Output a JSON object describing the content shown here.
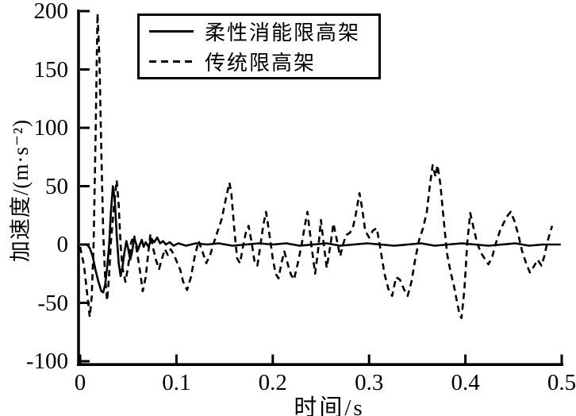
{
  "chart_data": {
    "type": "line",
    "title": "",
    "xlabel": "时间/s",
    "ylabel": "加速度/(m·s⁻²)",
    "xlim": [
      0,
      0.5
    ],
    "ylim": [
      -100,
      200
    ],
    "grid": false,
    "background": "#ffffff",
    "axis_color": "#000000",
    "xticks": {
      "values": [
        0,
        0.1,
        0.2,
        0.3,
        0.4,
        0.5
      ],
      "labels": [
        "0",
        "0.1",
        "0.2",
        "0.3",
        "0.4",
        "0.5"
      ]
    },
    "yticks": {
      "values": [
        200,
        150,
        100,
        50,
        0,
        -50,
        -100
      ],
      "labels": [
        "200",
        "150",
        "100",
        "50",
        "0",
        "-50",
        "-100"
      ]
    },
    "legend": {
      "position": "upper-left-inside",
      "border": true
    },
    "series": [
      {
        "name": "柔性消能限高架",
        "line_style": "solid",
        "color": "#000000",
        "points": [
          [
            0,
            0
          ],
          [
            0.007,
            0
          ],
          [
            0.01,
            -3
          ],
          [
            0.013,
            -10
          ],
          [
            0.016,
            -22
          ],
          [
            0.019,
            -32
          ],
          [
            0.022,
            -40
          ],
          [
            0.024,
            -41
          ],
          [
            0.026,
            -34
          ],
          [
            0.028,
            -20
          ],
          [
            0.03,
            -2
          ],
          [
            0.032,
            28
          ],
          [
            0.034,
            50
          ],
          [
            0.036,
            38
          ],
          [
            0.038,
            8
          ],
          [
            0.04,
            -16
          ],
          [
            0.042,
            -27
          ],
          [
            0.044,
            -19
          ],
          [
            0.046,
            -7
          ],
          [
            0.048,
            3
          ],
          [
            0.05,
            -4
          ],
          [
            0.052,
            -13
          ],
          [
            0.054,
            -6
          ],
          [
            0.056,
            5
          ],
          [
            0.058,
            1
          ],
          [
            0.06,
            -5
          ],
          [
            0.062,
            0
          ],
          [
            0.064,
            4
          ],
          [
            0.066,
            -2
          ],
          [
            0.068,
            2
          ],
          [
            0.071,
            -2
          ],
          [
            0.074,
            5
          ],
          [
            0.077,
            2
          ],
          [
            0.08,
            6
          ],
          [
            0.083,
            1
          ],
          [
            0.086,
            3
          ],
          [
            0.089,
            0
          ],
          [
            0.093,
            2
          ],
          [
            0.097,
            -1
          ],
          [
            0.102,
            1
          ],
          [
            0.11,
            -1
          ],
          [
            0.12,
            1
          ],
          [
            0.132,
            0
          ],
          [
            0.144,
            1
          ],
          [
            0.158,
            -1
          ],
          [
            0.172,
            0
          ],
          [
            0.186,
            1
          ],
          [
            0.2,
            0
          ],
          [
            0.214,
            1
          ],
          [
            0.228,
            -1
          ],
          [
            0.242,
            0
          ],
          [
            0.256,
            1
          ],
          [
            0.27,
            -1
          ],
          [
            0.284,
            0
          ],
          [
            0.298,
            1
          ],
          [
            0.312,
            0
          ],
          [
            0.326,
            -1
          ],
          [
            0.34,
            0
          ],
          [
            0.354,
            1
          ],
          [
            0.368,
            -1
          ],
          [
            0.382,
            0
          ],
          [
            0.396,
            1
          ],
          [
            0.41,
            0
          ],
          [
            0.424,
            -1
          ],
          [
            0.438,
            0
          ],
          [
            0.452,
            1
          ],
          [
            0.466,
            -1
          ],
          [
            0.48,
            0
          ],
          [
            0.499,
            0
          ]
        ]
      },
      {
        "name": "传统限高架",
        "line_style": "dashed",
        "color": "#000000",
        "points": [
          [
            0,
            -2
          ],
          [
            0.004,
            -18
          ],
          [
            0.007,
            -40
          ],
          [
            0.01,
            -62
          ],
          [
            0.012,
            -45
          ],
          [
            0.014,
            0
          ],
          [
            0.016,
            90
          ],
          [
            0.018,
            198
          ],
          [
            0.02,
            160
          ],
          [
            0.022,
            80
          ],
          [
            0.024,
            10
          ],
          [
            0.026,
            -30
          ],
          [
            0.028,
            -48
          ],
          [
            0.03,
            -28
          ],
          [
            0.032,
            2
          ],
          [
            0.035,
            32
          ],
          [
            0.038,
            55
          ],
          [
            0.04,
            34
          ],
          [
            0.042,
            0
          ],
          [
            0.044,
            -20
          ],
          [
            0.047,
            -32
          ],
          [
            0.05,
            -18
          ],
          [
            0.053,
            2
          ],
          [
            0.056,
            8
          ],
          [
            0.059,
            -6
          ],
          [
            0.062,
            -22
          ],
          [
            0.065,
            -40
          ],
          [
            0.068,
            -28
          ],
          [
            0.071,
            -5
          ],
          [
            0.073,
            9
          ],
          [
            0.076,
            -4
          ],
          [
            0.079,
            -14
          ],
          [
            0.082,
            -21
          ],
          [
            0.085,
            -12
          ],
          [
            0.088,
            -4
          ],
          [
            0.091,
            -9
          ],
          [
            0.094,
            -4
          ],
          [
            0.097,
            -8
          ],
          [
            0.1,
            -14
          ],
          [
            0.104,
            -22
          ],
          [
            0.107,
            -32
          ],
          [
            0.111,
            -39
          ],
          [
            0.115,
            -28
          ],
          [
            0.119,
            -10
          ],
          [
            0.123,
            3
          ],
          [
            0.127,
            -6
          ],
          [
            0.131,
            -16
          ],
          [
            0.135,
            -9
          ],
          [
            0.139,
            2
          ],
          [
            0.143,
            12
          ],
          [
            0.147,
            22
          ],
          [
            0.151,
            38
          ],
          [
            0.155,
            53
          ],
          [
            0.157,
            44
          ],
          [
            0.16,
            14
          ],
          [
            0.163,
            -12
          ],
          [
            0.166,
            -16
          ],
          [
            0.169,
            -2
          ],
          [
            0.172,
            10
          ],
          [
            0.175,
            16
          ],
          [
            0.178,
            2
          ],
          [
            0.181,
            -14
          ],
          [
            0.184,
            -18
          ],
          [
            0.187,
            -2
          ],
          [
            0.19,
            16
          ],
          [
            0.193,
            28
          ],
          [
            0.196,
            12
          ],
          [
            0.2,
            -12
          ],
          [
            0.203,
            -25
          ],
          [
            0.206,
            -29
          ],
          [
            0.209,
            -16
          ],
          [
            0.212,
            -6
          ],
          [
            0.216,
            -18
          ],
          [
            0.219,
            -26
          ],
          [
            0.222,
            -30
          ],
          [
            0.226,
            -16
          ],
          [
            0.23,
            0
          ],
          [
            0.233,
            15
          ],
          [
            0.236,
            28
          ],
          [
            0.24,
            0
          ],
          [
            0.244,
            -25
          ],
          [
            0.247,
            -5
          ],
          [
            0.25,
            21
          ],
          [
            0.253,
            0
          ],
          [
            0.256,
            -20
          ],
          [
            0.26,
            0
          ],
          [
            0.263,
            18
          ],
          [
            0.267,
            2
          ],
          [
            0.27,
            -10
          ],
          [
            0.273,
            0
          ],
          [
            0.276,
            8
          ],
          [
            0.28,
            10
          ],
          [
            0.283,
            14
          ],
          [
            0.286,
            25
          ],
          [
            0.29,
            44
          ],
          [
            0.293,
            30
          ],
          [
            0.296,
            12
          ],
          [
            0.3,
            6
          ],
          [
            0.304,
            12
          ],
          [
            0.308,
            14
          ],
          [
            0.312,
            -5
          ],
          [
            0.316,
            -25
          ],
          [
            0.32,
            -38
          ],
          [
            0.324,
            -44
          ],
          [
            0.328,
            -28
          ],
          [
            0.332,
            -30
          ],
          [
            0.336,
            -38
          ],
          [
            0.34,
            -44
          ],
          [
            0.344,
            -32
          ],
          [
            0.348,
            -12
          ],
          [
            0.352,
            4
          ],
          [
            0.356,
            14
          ],
          [
            0.36,
            28
          ],
          [
            0.363,
            50
          ],
          [
            0.366,
            68
          ],
          [
            0.369,
            58
          ],
          [
            0.371,
            68
          ],
          [
            0.374,
            52
          ],
          [
            0.377,
            25
          ],
          [
            0.381,
            -8
          ],
          [
            0.385,
            -25
          ],
          [
            0.388,
            -35
          ],
          [
            0.391,
            -48
          ],
          [
            0.394,
            -60
          ],
          [
            0.396,
            -63
          ],
          [
            0.399,
            -38
          ],
          [
            0.402,
            2
          ],
          [
            0.405,
            27
          ],
          [
            0.408,
            16
          ],
          [
            0.412,
            2
          ],
          [
            0.416,
            -7
          ],
          [
            0.42,
            -12
          ],
          [
            0.424,
            -17
          ],
          [
            0.428,
            -10
          ],
          [
            0.432,
            2
          ],
          [
            0.436,
            12
          ],
          [
            0.44,
            19
          ],
          [
            0.444,
            25
          ],
          [
            0.447,
            28
          ],
          [
            0.451,
            20
          ],
          [
            0.455,
            8
          ],
          [
            0.459,
            -6
          ],
          [
            0.463,
            -16
          ],
          [
            0.467,
            -24
          ],
          [
            0.471,
            -19
          ],
          [
            0.475,
            -13
          ],
          [
            0.479,
            -18
          ],
          [
            0.482,
            -10
          ],
          [
            0.485,
            2
          ],
          [
            0.49,
            16
          ]
        ]
      }
    ]
  }
}
